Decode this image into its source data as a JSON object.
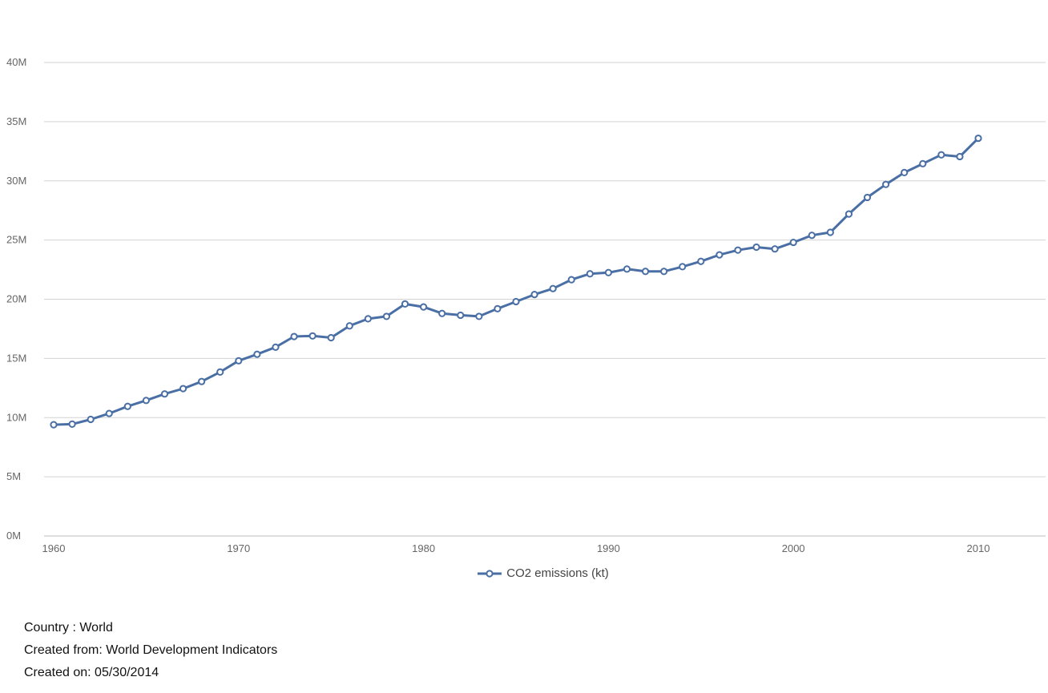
{
  "chart_data": {
    "type": "line",
    "title": "",
    "xlabel": "",
    "ylabel": "",
    "xlim": [
      1960,
      2013
    ],
    "ylim": [
      0,
      40000000
    ],
    "x_ticks": [
      1960,
      1970,
      1980,
      1990,
      2000,
      2010
    ],
    "x_tick_labels": [
      "1960",
      "1970",
      "1980",
      "1990",
      "2000",
      "2010"
    ],
    "y_ticks": [
      0,
      5000000,
      10000000,
      15000000,
      20000000,
      25000000,
      30000000,
      35000000,
      40000000
    ],
    "y_tick_labels": [
      "0M",
      "5M",
      "10M",
      "15M",
      "20M",
      "25M",
      "30M",
      "35M",
      "40M"
    ],
    "grid": "horizontal",
    "legend_position": "bottom-center",
    "x": [
      1960,
      1961,
      1962,
      1963,
      1964,
      1965,
      1966,
      1967,
      1968,
      1969,
      1970,
      1971,
      1972,
      1973,
      1974,
      1975,
      1976,
      1977,
      1978,
      1979,
      1980,
      1981,
      1982,
      1983,
      1984,
      1985,
      1986,
      1987,
      1988,
      1989,
      1990,
      1991,
      1992,
      1993,
      1994,
      1995,
      1996,
      1997,
      1998,
      1999,
      2000,
      2001,
      2002,
      2003,
      2004,
      2005,
      2006,
      2007,
      2008,
      2009,
      2010
    ],
    "series": [
      {
        "name": "CO2 emissions (kt)",
        "color": "#4a6fa5",
        "values": [
          9400000,
          9450000,
          9850000,
          10350000,
          10950000,
          11450000,
          12000000,
          12450000,
          13050000,
          13850000,
          14800000,
          15350000,
          15950000,
          16850000,
          16900000,
          16750000,
          17750000,
          18350000,
          18550000,
          19600000,
          19350000,
          18800000,
          18650000,
          18550000,
          19200000,
          19800000,
          20400000,
          20900000,
          21650000,
          22150000,
          22250000,
          22550000,
          22350000,
          22350000,
          22750000,
          23200000,
          23750000,
          24150000,
          24400000,
          24250000,
          24800000,
          25400000,
          25650000,
          27200000,
          28600000,
          29700000,
          30700000,
          31450000,
          32200000,
          32050000,
          33600000
        ]
      }
    ]
  },
  "footer": {
    "country": "Country : World",
    "source": "Created from: World Development Indicators",
    "created_on": "Created on: 05/30/2014"
  }
}
